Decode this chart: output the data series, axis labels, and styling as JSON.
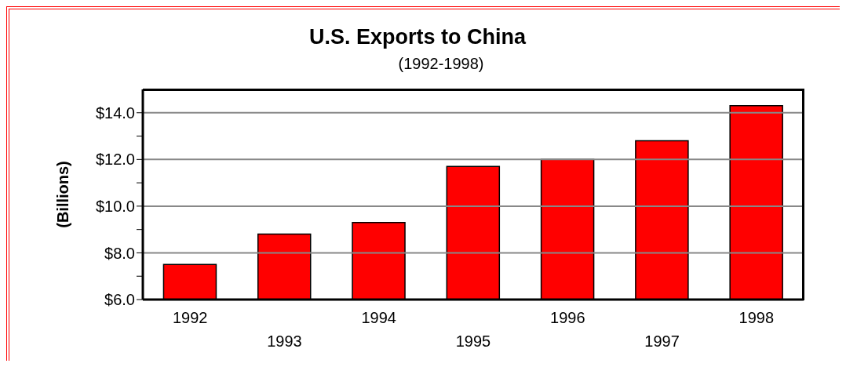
{
  "chart_data": {
    "type": "bar",
    "title": "U.S. Exports to China",
    "subtitle": "(1992-1998)",
    "ylabel": "(Billions)",
    "categories": [
      "1992",
      "1993",
      "1994",
      "1995",
      "1996",
      "1997",
      "1998"
    ],
    "values": [
      7.5,
      8.8,
      9.3,
      11.7,
      12.0,
      12.8,
      14.3
    ],
    "color": "#ff0000",
    "ylim": [
      6,
      15
    ],
    "yticks": [
      {
        "value": 6,
        "label": "$6.0"
      },
      {
        "value": 7,
        "label": null
      },
      {
        "value": 8,
        "label": "$8.0"
      },
      {
        "value": 9,
        "label": null
      },
      {
        "value": 10,
        "label": "$10.0"
      },
      {
        "value": 11,
        "label": null
      },
      {
        "value": 12,
        "label": "$12.0"
      },
      {
        "value": 13,
        "label": null
      },
      {
        "value": 14,
        "label": "$14.0"
      }
    ],
    "grid": "y"
  }
}
